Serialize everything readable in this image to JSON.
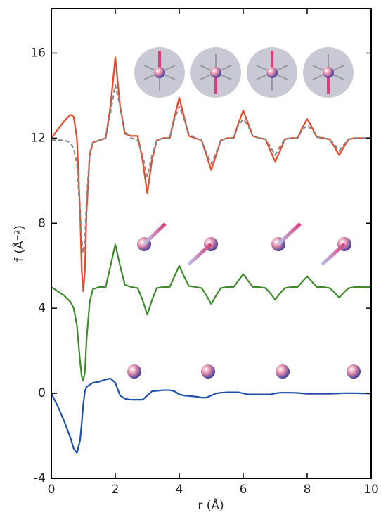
{
  "chart_data": {
    "type": "line",
    "xlabel": "r (Å)",
    "ylabel": "f (Å⁻²)",
    "xlim": [
      0,
      10
    ],
    "ylim": [
      -4,
      18.1
    ],
    "xticks": [
      0,
      2,
      4,
      6,
      8,
      10
    ],
    "yticks": [
      -4,
      0,
      4,
      8,
      12,
      16
    ],
    "x": [
      0,
      0.2,
      0.4,
      0.6,
      0.7,
      0.8,
      0.9,
      0.95,
      1.0,
      1.05,
      1.1,
      1.2,
      1.3,
      1.5,
      1.7,
      1.85,
      2.0,
      2.15,
      2.3,
      2.5,
      2.7,
      2.85,
      3.0,
      3.15,
      3.3,
      3.5,
      3.7,
      3.85,
      4.0,
      4.15,
      4.3,
      4.5,
      4.7,
      4.85,
      5.0,
      5.15,
      5.3,
      5.5,
      5.7,
      5.85,
      6.0,
      6.15,
      6.3,
      6.5,
      6.7,
      6.85,
      7.0,
      7.15,
      7.3,
      7.5,
      7.7,
      7.85,
      8.0,
      8.15,
      8.3,
      8.5,
      8.7,
      8.85,
      9.0,
      9.15,
      9.3,
      9.5,
      9.7,
      9.85,
      10.0
    ],
    "series": [
      {
        "color": "#e8472a",
        "dash": false,
        "values": [
          12.0,
          12.4,
          12.8,
          13.1,
          13.0,
          12.0,
          8.5,
          5.8,
          4.8,
          5.8,
          8.5,
          11.2,
          11.8,
          11.9,
          12.0,
          13.5,
          15.8,
          13.5,
          12.2,
          12.1,
          12.1,
          11.0,
          9.4,
          11.0,
          11.9,
          12.0,
          12.0,
          13.0,
          13.9,
          13.0,
          12.1,
          12.0,
          11.9,
          11.2,
          10.5,
          11.2,
          11.9,
          12.0,
          12.0,
          12.7,
          13.3,
          12.7,
          12.1,
          12.0,
          11.95,
          11.4,
          10.9,
          11.4,
          11.95,
          12.0,
          12.0,
          12.5,
          12.9,
          12.5,
          12.05,
          12.0,
          11.95,
          11.6,
          11.2,
          11.6,
          11.95,
          12.0,
          12.0,
          12.0,
          12.0
        ]
      },
      {
        "color": "#888888",
        "dash": true,
        "values": [
          11.9,
          11.9,
          11.9,
          11.8,
          11.5,
          10.8,
          8.5,
          7.2,
          6.6,
          7.2,
          9.0,
          11.3,
          11.8,
          11.9,
          12.0,
          13.2,
          14.5,
          13.5,
          12.3,
          12.0,
          11.9,
          11.2,
          10.2,
          11.2,
          11.9,
          12.0,
          12.0,
          12.9,
          13.5,
          12.9,
          12.2,
          12.0,
          11.9,
          11.3,
          10.8,
          11.3,
          11.9,
          12.0,
          12.0,
          12.6,
          12.9,
          12.6,
          12.1,
          12.0,
          11.95,
          11.6,
          11.2,
          11.6,
          11.95,
          12.0,
          12.0,
          12.4,
          12.6,
          12.4,
          12.05,
          12.0,
          11.95,
          11.7,
          11.4,
          11.7,
          11.95,
          12.0,
          12.0,
          12.0,
          12.0
        ]
      },
      {
        "color": "#3f8a2e",
        "dash": false,
        "values": [
          5.0,
          4.8,
          4.6,
          4.3,
          4.0,
          3.2,
          1.5,
          0.8,
          0.6,
          1.0,
          2.5,
          4.3,
          4.9,
          5.0,
          5.0,
          6.0,
          7.0,
          6.0,
          5.1,
          5.0,
          4.95,
          4.4,
          3.7,
          4.4,
          4.95,
          5.0,
          5.0,
          5.5,
          6.0,
          5.5,
          5.05,
          5.0,
          4.95,
          4.6,
          4.2,
          4.6,
          4.95,
          5.0,
          5.0,
          5.3,
          5.6,
          5.3,
          5.0,
          5.0,
          4.95,
          4.7,
          4.4,
          4.7,
          4.95,
          5.0,
          5.0,
          5.25,
          5.5,
          5.25,
          5.0,
          5.0,
          4.95,
          4.75,
          4.5,
          4.75,
          4.95,
          5.0,
          5.0,
          5.0,
          5.0
        ]
      },
      {
        "color": "#1f4fa8",
        "dash": false,
        "values": [
          0.0,
          -0.6,
          -1.3,
          -2.1,
          -2.6,
          -2.8,
          -2.2,
          -1.4,
          -0.5,
          0.1,
          0.3,
          0.4,
          0.5,
          0.55,
          0.65,
          0.7,
          0.5,
          -0.1,
          -0.25,
          -0.3,
          -0.3,
          -0.3,
          -0.1,
          0.1,
          0.12,
          0.15,
          0.15,
          0.1,
          -0.05,
          -0.1,
          -0.12,
          -0.15,
          -0.2,
          -0.2,
          -0.1,
          0.0,
          0.03,
          0.05,
          0.05,
          0.05,
          0.0,
          -0.05,
          -0.05,
          -0.05,
          -0.05,
          -0.05,
          0.0,
          0.03,
          0.03,
          0.03,
          0.02,
          0.0,
          -0.02,
          -0.02,
          -0.02,
          -0.02,
          -0.02,
          -0.01,
          0.0,
          0.01,
          0.01,
          0.01,
          0.0,
          0.0,
          0.0
        ]
      }
    ]
  }
}
